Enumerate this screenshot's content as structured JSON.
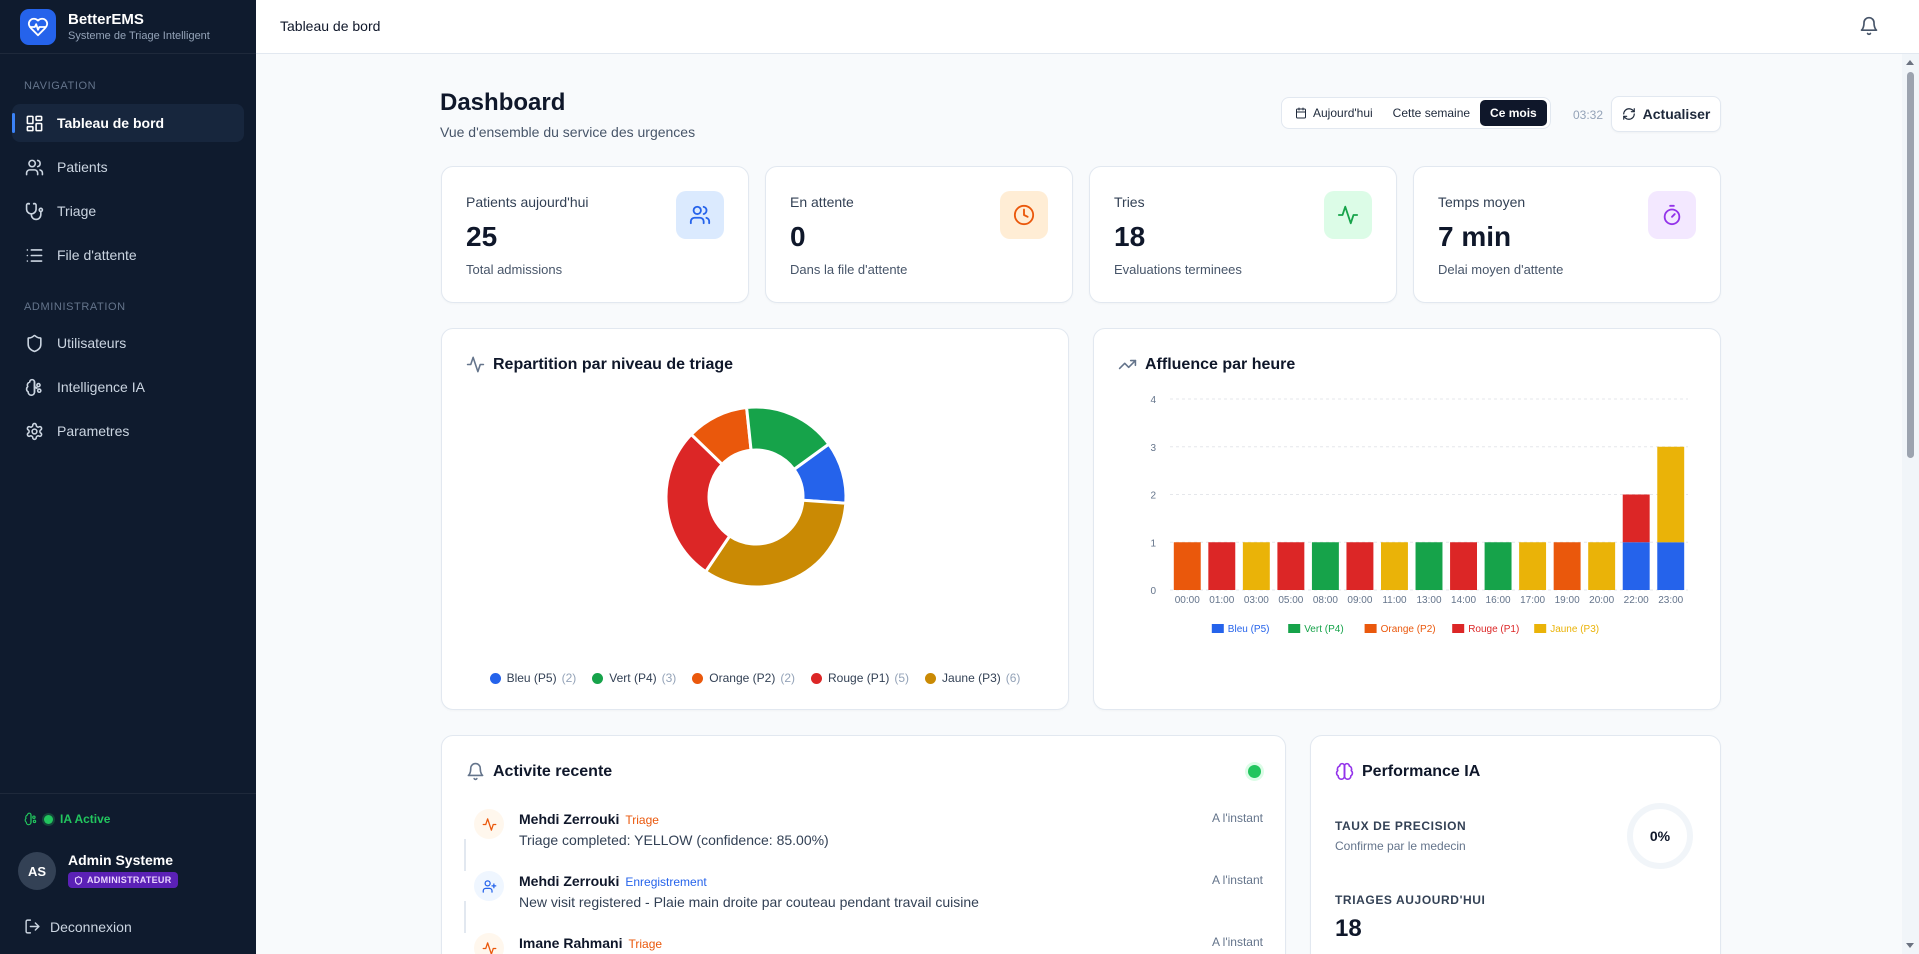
{
  "brand": {
    "name": "BetterEMS",
    "subtitle": "Systeme de Triage Intelligent",
    "logo_icon": "heart-pulse-icon"
  },
  "sidebar": {
    "sections": [
      {
        "title": "NAVIGATION",
        "items": [
          {
            "label": "Tableau de bord",
            "icon": "dashboard-icon",
            "active": true
          },
          {
            "label": "Patients",
            "icon": "users-icon"
          },
          {
            "label": "Triage",
            "icon": "stethoscope-icon"
          },
          {
            "label": "File d'attente",
            "icon": "list-icon"
          }
        ]
      },
      {
        "title": "ADMINISTRATION",
        "items": [
          {
            "label": "Utilisateurs",
            "icon": "shield-icon"
          },
          {
            "label": "Intelligence IA",
            "icon": "brain-icon"
          },
          {
            "label": "Parametres",
            "icon": "gear-icon"
          }
        ]
      }
    ],
    "ia_status": "IA Active",
    "user": {
      "initials": "AS",
      "name": "Admin Systeme",
      "role": "ADMINISTRATEUR"
    },
    "logout": "Deconnexion"
  },
  "header": {
    "breadcrumb": "Tableau de bord"
  },
  "page": {
    "title": "Dashboard",
    "subtitle": "Vue d'ensemble du service des urgences",
    "periods": [
      "Aujourd'hui",
      "Cette semaine",
      "Ce mois"
    ],
    "selected_period": "Ce mois",
    "time": "03:32",
    "refresh": "Actualiser"
  },
  "stats": [
    {
      "label": "Patients aujourd'hui",
      "value": "25",
      "desc": "Total admissions",
      "icon": "users-icon",
      "color": "#2563eb",
      "bg": "#dbeafe"
    },
    {
      "label": "En attente",
      "value": "0",
      "desc": "Dans la file d'attente",
      "icon": "clock-icon",
      "color": "#ea580c",
      "bg": "#ffedd5"
    },
    {
      "label": "Tries",
      "value": "18",
      "desc": "Evaluations terminees",
      "icon": "activity-icon",
      "color": "#16a34a",
      "bg": "#dcfce7"
    },
    {
      "label": "Temps moyen",
      "value": "7 min",
      "desc": "Delai moyen d'attente",
      "icon": "timer-icon",
      "color": "#9333ea",
      "bg": "#f3e8ff"
    }
  ],
  "triage_card": {
    "title": "Repartition par niveau de triage"
  },
  "hourly_card": {
    "title": "Affluence par heure"
  },
  "chart_data": [
    {
      "type": "pie",
      "title": "Repartition par niveau de triage",
      "categories": [
        "Bleu (P5)",
        "Vert (P4)",
        "Orange (P2)",
        "Rouge (P1)",
        "Jaune (P3)"
      ],
      "values": [
        2,
        3,
        2,
        5,
        6
      ],
      "colors": [
        "#2563eb",
        "#16a34a",
        "#ea580c",
        "#dc2626",
        "#ca8a04"
      ],
      "legend": "bottom"
    },
    {
      "type": "bar",
      "title": "Affluence par heure",
      "stacked": true,
      "categories": [
        "00:00",
        "01:00",
        "03:00",
        "05:00",
        "08:00",
        "09:00",
        "11:00",
        "13:00",
        "14:00",
        "16:00",
        "17:00",
        "19:00",
        "20:00",
        "22:00",
        "23:00"
      ],
      "series": [
        {
          "name": "Bleu (P5)",
          "color": "#2563eb",
          "values": [
            0,
            0,
            0,
            0,
            0,
            0,
            0,
            0,
            0,
            0,
            0,
            0,
            0,
            1,
            1
          ]
        },
        {
          "name": "Vert (P4)",
          "color": "#16a34a",
          "values": [
            0,
            0,
            0,
            0,
            1,
            0,
            0,
            1,
            0,
            1,
            0,
            0,
            0,
            0,
            0
          ]
        },
        {
          "name": "Orange (P2)",
          "color": "#ea580c",
          "values": [
            1,
            0,
            0,
            0,
            0,
            0,
            0,
            0,
            0,
            0,
            0,
            1,
            0,
            0,
            0
          ]
        },
        {
          "name": "Rouge (P1)",
          "color": "#dc2626",
          "values": [
            0,
            1,
            0,
            1,
            0,
            1,
            0,
            0,
            1,
            0,
            0,
            0,
            0,
            1,
            0
          ]
        },
        {
          "name": "Jaune (P3)",
          "color": "#eab308",
          "values": [
            0,
            0,
            1,
            0,
            0,
            0,
            1,
            0,
            0,
            0,
            1,
            0,
            1,
            0,
            2
          ]
        }
      ],
      "yticks": [
        0,
        1,
        2,
        3,
        4
      ],
      "ylim": [
        0,
        4
      ],
      "grid": true,
      "legend": "bottom"
    }
  ],
  "activity": {
    "title": "Activite recente",
    "items": [
      {
        "name": "Mehdi Zerrouki",
        "tag": "Triage",
        "tag_color": "#ea580c",
        "desc": "Triage completed: YELLOW (confidence: 85.00%)",
        "time": "A l'instant",
        "icon": "activity-icon",
        "icon_color": "#ea580c",
        "icon_bg": "#fff7ed"
      },
      {
        "name": "Mehdi Zerrouki",
        "tag": "Enregistrement",
        "tag_color": "#2563eb",
        "desc": "New visit registered - Plaie main droite par couteau pendant travail cuisine",
        "time": "A l'instant",
        "icon": "user-plus-icon",
        "icon_color": "#2563eb",
        "icon_bg": "#eff6ff"
      },
      {
        "name": "Imane Rahmani",
        "tag": "Triage",
        "tag_color": "#ea580c",
        "desc": "",
        "time": "A l'instant",
        "icon": "activity-icon",
        "icon_color": "#ea580c",
        "icon_bg": "#fff7ed"
      }
    ]
  },
  "performance": {
    "title": "Performance IA",
    "precision_label": "TAUX DE PRECISION",
    "precision_sub": "Confirme par le medecin",
    "precision_value": "0%",
    "precision_fraction": 0,
    "triages_label": "TRIAGES AUJOURD'HUI",
    "triages_value": "18"
  }
}
